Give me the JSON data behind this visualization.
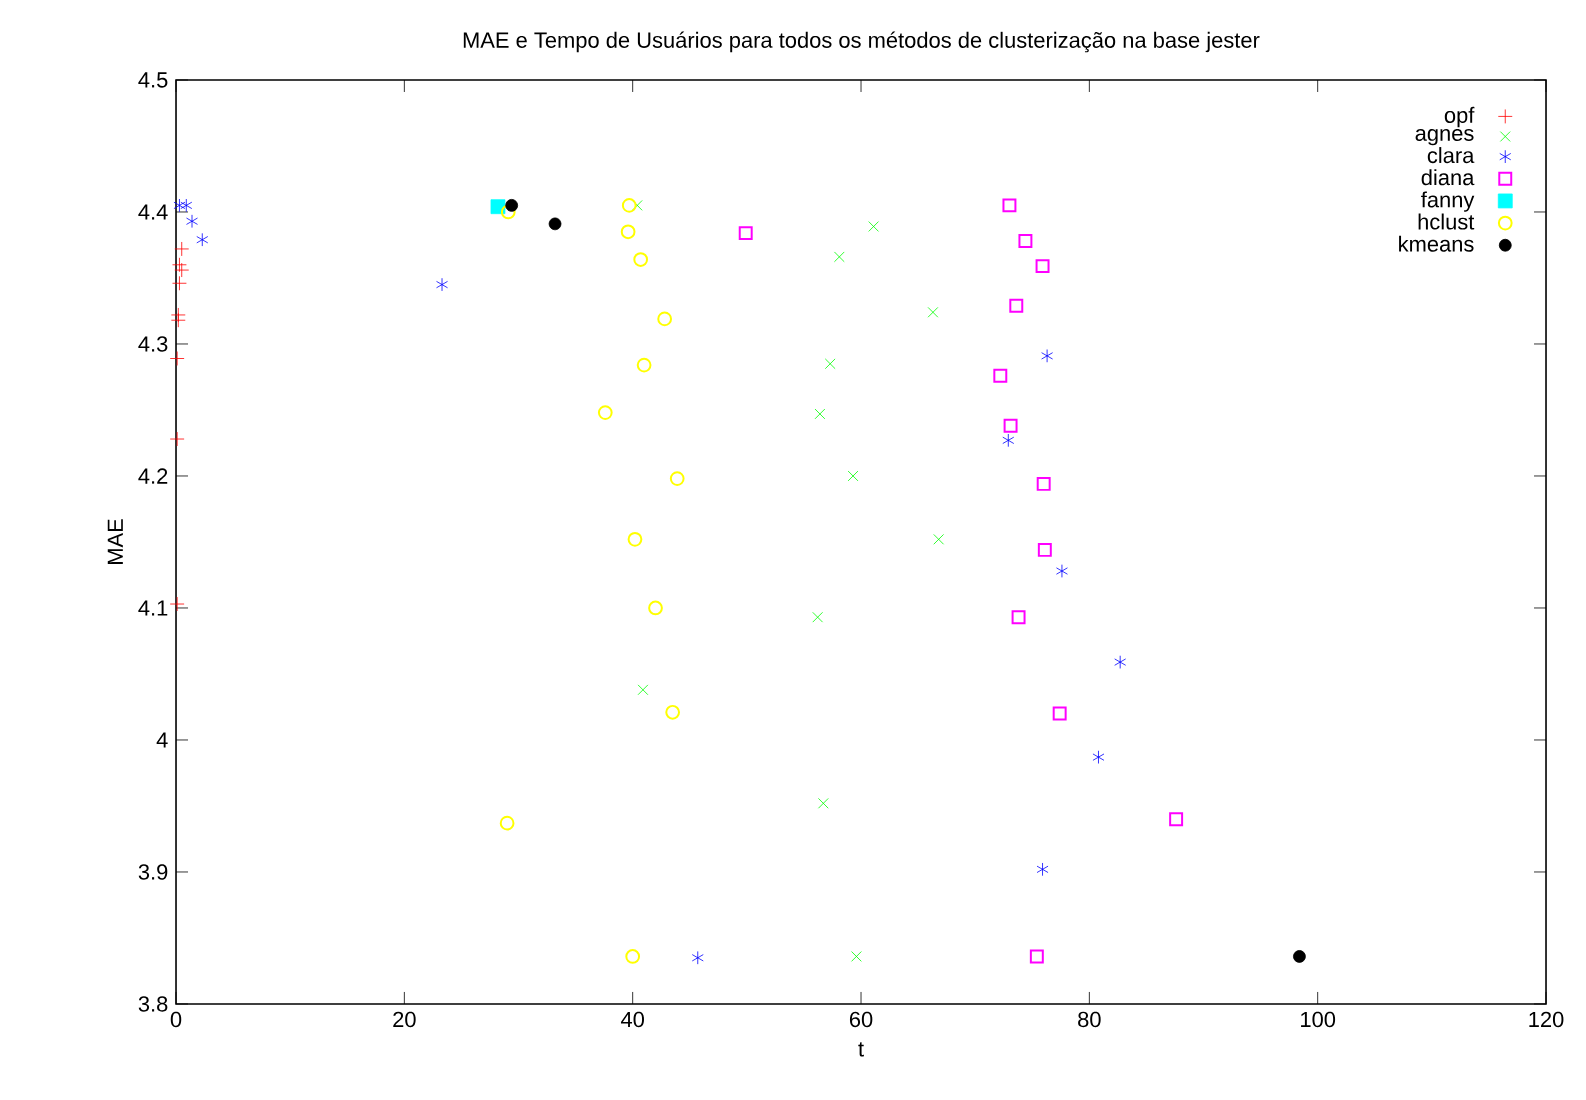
{
  "chart_data": {
    "type": "scatter",
    "title": "MAE e Tempo de Usuários para todos os métodos de clusterização na base jester",
    "xlabel": "t",
    "ylabel": "MAE",
    "xlim": [
      0,
      120
    ],
    "ylim": [
      3.8,
      4.5
    ],
    "xticks": [
      0,
      20,
      40,
      60,
      80,
      100,
      120
    ],
    "yticks": [
      3.8,
      3.9,
      4,
      4.1,
      4.2,
      4.3,
      4.4,
      4.5
    ],
    "grid": false,
    "legend": "top right",
    "series": [
      {
        "name": "opf",
        "color": "#ff0000",
        "marker": "plus",
        "x": [
          0.5,
          0.3,
          0.5,
          0.3,
          0.2,
          0.2,
          0.1,
          0.1,
          0.1
        ],
        "values": [
          4.372,
          4.36,
          4.356,
          4.346,
          4.322,
          4.318,
          4.289,
          4.228,
          4.103
        ]
      },
      {
        "name": "agnes",
        "color": "#00ff00",
        "marker": "cross",
        "x": [
          40.4,
          61.1,
          58.1,
          66.3,
          57.3,
          56.4,
          59.3,
          66.8,
          56.2,
          40.9,
          56.7,
          59.6
        ],
        "values": [
          4.405,
          4.389,
          4.366,
          4.324,
          4.285,
          4.247,
          4.2,
          4.152,
          4.093,
          4.038,
          3.952,
          3.836
        ]
      },
      {
        "name": "clara",
        "color": "#0000ff",
        "marker": "cross",
        "x": [
          0.3,
          0.9,
          1.4,
          2.3,
          23.3,
          76.3,
          72.9,
          77.6,
          82.7,
          80.8,
          75.9,
          45.7
        ],
        "values": [
          4.405,
          4.405,
          4.393,
          4.379,
          4.345,
          4.291,
          4.227,
          4.128,
          4.059,
          3.987,
          3.902,
          3.835
        ]
      },
      {
        "name": "diana",
        "color": "#ff00ff",
        "marker": "square",
        "x": [
          49.9,
          73.0,
          74.4,
          75.9,
          73.6,
          72.2,
          73.1,
          76.0,
          76.1,
          73.8,
          77.4,
          87.6,
          75.4
        ],
        "values": [
          4.384,
          4.405,
          4.378,
          4.359,
          4.329,
          4.276,
          4.238,
          4.194,
          4.144,
          4.093,
          4.02,
          3.94,
          3.836
        ]
      },
      {
        "name": "fanny",
        "color": "#00ffff",
        "marker": "square",
        "x": [
          28.2
        ],
        "values": [
          4.404
        ]
      },
      {
        "name": "hclust",
        "color": "#ffff00",
        "marker": "circle",
        "x": [
          29.1,
          39.7,
          39.6,
          40.7,
          42.8,
          41.0,
          37.6,
          43.9,
          40.2,
          42.0,
          43.5,
          29.0,
          40.0
        ],
        "values": [
          4.4,
          4.405,
          4.385,
          4.364,
          4.319,
          4.284,
          4.248,
          4.198,
          4.152,
          4.1,
          4.021,
          3.937,
          3.836
        ]
      },
      {
        "name": "kmeans",
        "color": "#000000",
        "marker": "circle",
        "x": [
          29.4,
          33.2,
          98.4
        ],
        "values": [
          4.405,
          4.391,
          3.836
        ]
      }
    ]
  }
}
